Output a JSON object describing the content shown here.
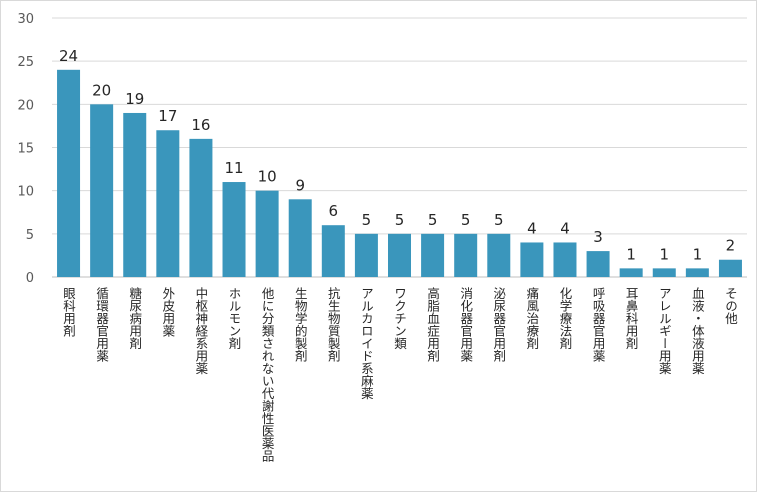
{
  "chart_data": {
    "type": "bar",
    "title": "",
    "xlabel": "",
    "ylabel": "",
    "ylim": [
      0,
      30
    ],
    "yticks": [
      0,
      5,
      10,
      15,
      20,
      25,
      30
    ],
    "grid": true,
    "legend": "none",
    "bar_color": "#3a96bc",
    "categories": [
      "眼科用剤",
      "循環器官用薬",
      "糖尿病用剤",
      "外皮用薬",
      "中枢神経系用薬",
      "ホルモン剤",
      "他に分類されない代謝性医薬品",
      "生物学的製剤",
      "抗生物質製剤",
      "アルカロイド系麻薬",
      "ワクチン類",
      "高脂血症用剤",
      "消化器官用薬",
      "泌尿器官用剤",
      "痛風治療剤",
      "化学療法剤",
      "呼吸器官用薬",
      "耳鼻科用剤",
      "アレルギー用薬",
      "血液・体液用薬",
      "その他"
    ],
    "values": [
      24,
      20,
      19,
      17,
      16,
      11,
      10,
      9,
      6,
      5,
      5,
      5,
      5,
      5,
      4,
      4,
      3,
      1,
      1,
      1,
      2
    ]
  }
}
